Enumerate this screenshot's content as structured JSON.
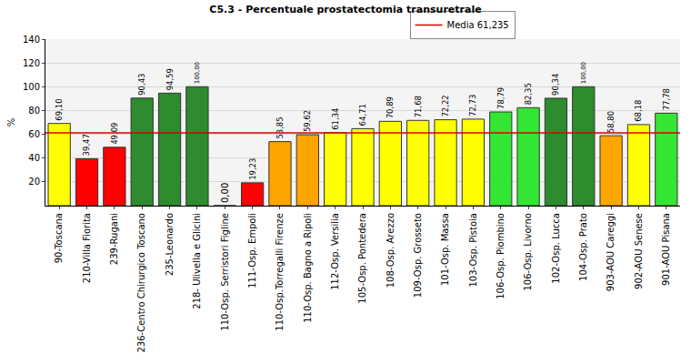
{
  "chart_data": {
    "type": "bar",
    "title": "C5.3 - Percentuale prostatectomia transuretrale",
    "y_label": "%",
    "categories": [
      "90-Toscana",
      "210-Villa Fiorita",
      "239-Rugani",
      "236-Centro Chirurgico Toscano",
      "235-Leonardo",
      "218- Ulivella e Glicini",
      "110-Osp. Serristori Figline",
      "111-Osp. Empoli",
      "110-Osp.Torregalli Firenze",
      "110-Osp. Bagno a Ripoli",
      "112-Osp. Versilia",
      "105-Osp. Pontedera",
      "108-Osp. Arezzo",
      "109-Osp. Grosseto",
      "101-Osp. Massa",
      "103-Osp. Pistoia",
      "106-Osp. Piombino",
      "106-Osp. Livorno",
      "102-Osp. Lucca",
      "104-Osp. Prato",
      "903-AOU Careggi",
      "902-AOU Senese",
      "901-AOU Pisana"
    ],
    "values": [
      69.1,
      39.47,
      49.09,
      90.43,
      94.59,
      100.0,
      0.0,
      19.23,
      53.85,
      59.62,
      61.34,
      64.71,
      70.89,
      71.68,
      72.22,
      72.73,
      78.79,
      82.35,
      90.34,
      100.0,
      58.8,
      68.18,
      77.78
    ],
    "value_labels": [
      "69,10",
      "39,47",
      "49,09",
      "90,43",
      "94,59",
      "100,00",
      "0,00",
      "19,23",
      "53,85",
      "59,62",
      "61,34",
      "64,71",
      "70,89",
      "71,68",
      "72,22",
      "72,73",
      "78,79",
      "82,35",
      "90,34",
      "100,00",
      "58,80",
      "68,18",
      "77,78"
    ],
    "colors": [
      "#ffff00",
      "#ff0000",
      "#ff0000",
      "#2e8b2e",
      "#2e8b2e",
      "#2e8b2e",
      "#ff0000",
      "#ff0000",
      "#ffa500",
      "#ffa500",
      "#ffff00",
      "#ffff00",
      "#ffff00",
      "#ffff00",
      "#ffff00",
      "#ffff00",
      "#33e633",
      "#33e633",
      "#2e8b2e",
      "#2e8b2e",
      "#ffa500",
      "#ffff00",
      "#33e633"
    ],
    "data_labels": true,
    "reference_line": {
      "name": "Media 61,235",
      "value": 61.235,
      "color": "#dd0000"
    },
    "legend": "top right",
    "ylim": [
      0,
      140
    ],
    "yticks": [
      20,
      40,
      60,
      80,
      100,
      120,
      140
    ],
    "grid": true
  }
}
